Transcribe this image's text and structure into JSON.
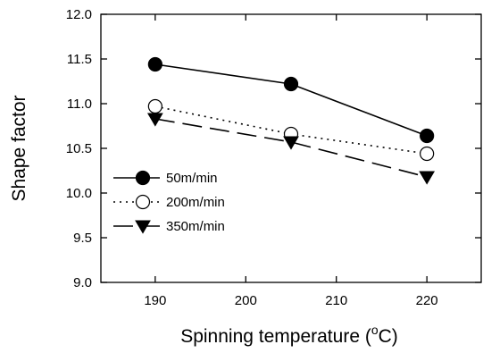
{
  "chart_data": {
    "type": "line",
    "xlabel_main": "Spinning temperature (",
    "xlabel_sup": "o",
    "xlabel_end": "C)",
    "ylabel": "Shape factor",
    "x_ticks": [
      190,
      200,
      210,
      220
    ],
    "y_ticks": [
      "9.0",
      "9.5",
      "10.0",
      "10.5",
      "11.0",
      "11.5",
      "12.0"
    ],
    "xlim": [
      184,
      226
    ],
    "ylim": [
      9.0,
      12.0
    ],
    "grid": false,
    "legend_position": "lower-left",
    "x": [
      190,
      205,
      220
    ],
    "series": [
      {
        "name": "50m/min",
        "values": [
          11.44,
          11.22,
          10.64
        ],
        "marker": "filled-circle",
        "line": "solid"
      },
      {
        "name": "200m/min",
        "values": [
          10.97,
          10.66,
          10.44
        ],
        "marker": "open-circle",
        "line": "dotted"
      },
      {
        "name": "350m/min",
        "values": [
          10.83,
          10.57,
          10.18
        ],
        "marker": "filled-triangle-down",
        "line": "dashed"
      }
    ]
  }
}
